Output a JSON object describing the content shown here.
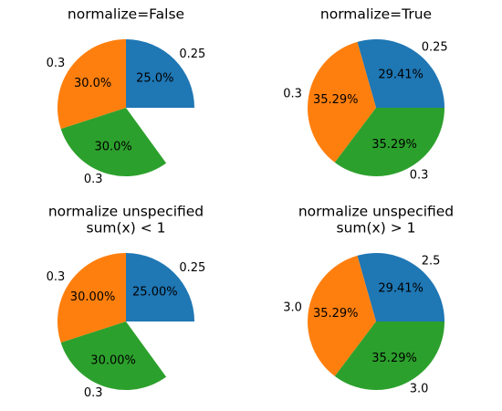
{
  "chart_data": [
    {
      "type": "pie",
      "title_lines": [
        "normalize=False"
      ],
      "values": [
        0.25,
        0.3,
        0.3
      ],
      "normalize": false,
      "labels": [
        "0.25",
        "0.3",
        "0.3"
      ],
      "pct_labels": [
        "25.0%",
        "30.0%",
        "30.0%"
      ],
      "colors": [
        "#1f77b4",
        "#ff7f0e",
        "#2ca02c"
      ]
    },
    {
      "type": "pie",
      "title_lines": [
        "normalize=True"
      ],
      "values": [
        0.25,
        0.3,
        0.3
      ],
      "normalize": true,
      "labels": [
        "0.25",
        "0.3",
        "0.3"
      ],
      "pct_labels": [
        "29.41%",
        "35.29%",
        "35.29%"
      ],
      "colors": [
        "#1f77b4",
        "#ff7f0e",
        "#2ca02c"
      ]
    },
    {
      "type": "pie",
      "title_lines": [
        "normalize unspecified",
        "sum(x) < 1"
      ],
      "values": [
        0.25,
        0.3,
        0.3
      ],
      "normalize": false,
      "labels": [
        "0.25",
        "0.3",
        "0.3"
      ],
      "pct_labels": [
        "25.00%",
        "30.00%",
        "30.00%"
      ],
      "colors": [
        "#1f77b4",
        "#ff7f0e",
        "#2ca02c"
      ]
    },
    {
      "type": "pie",
      "title_lines": [
        "normalize unspecified",
        "sum(x) > 1"
      ],
      "values": [
        2.5,
        3.0,
        3.0
      ],
      "normalize": true,
      "labels": [
        "2.5",
        "3.0",
        "3.0"
      ],
      "pct_labels": [
        "29.41%",
        "35.29%",
        "35.29%"
      ],
      "colors": [
        "#1f77b4",
        "#ff7f0e",
        "#2ca02c"
      ]
    }
  ]
}
